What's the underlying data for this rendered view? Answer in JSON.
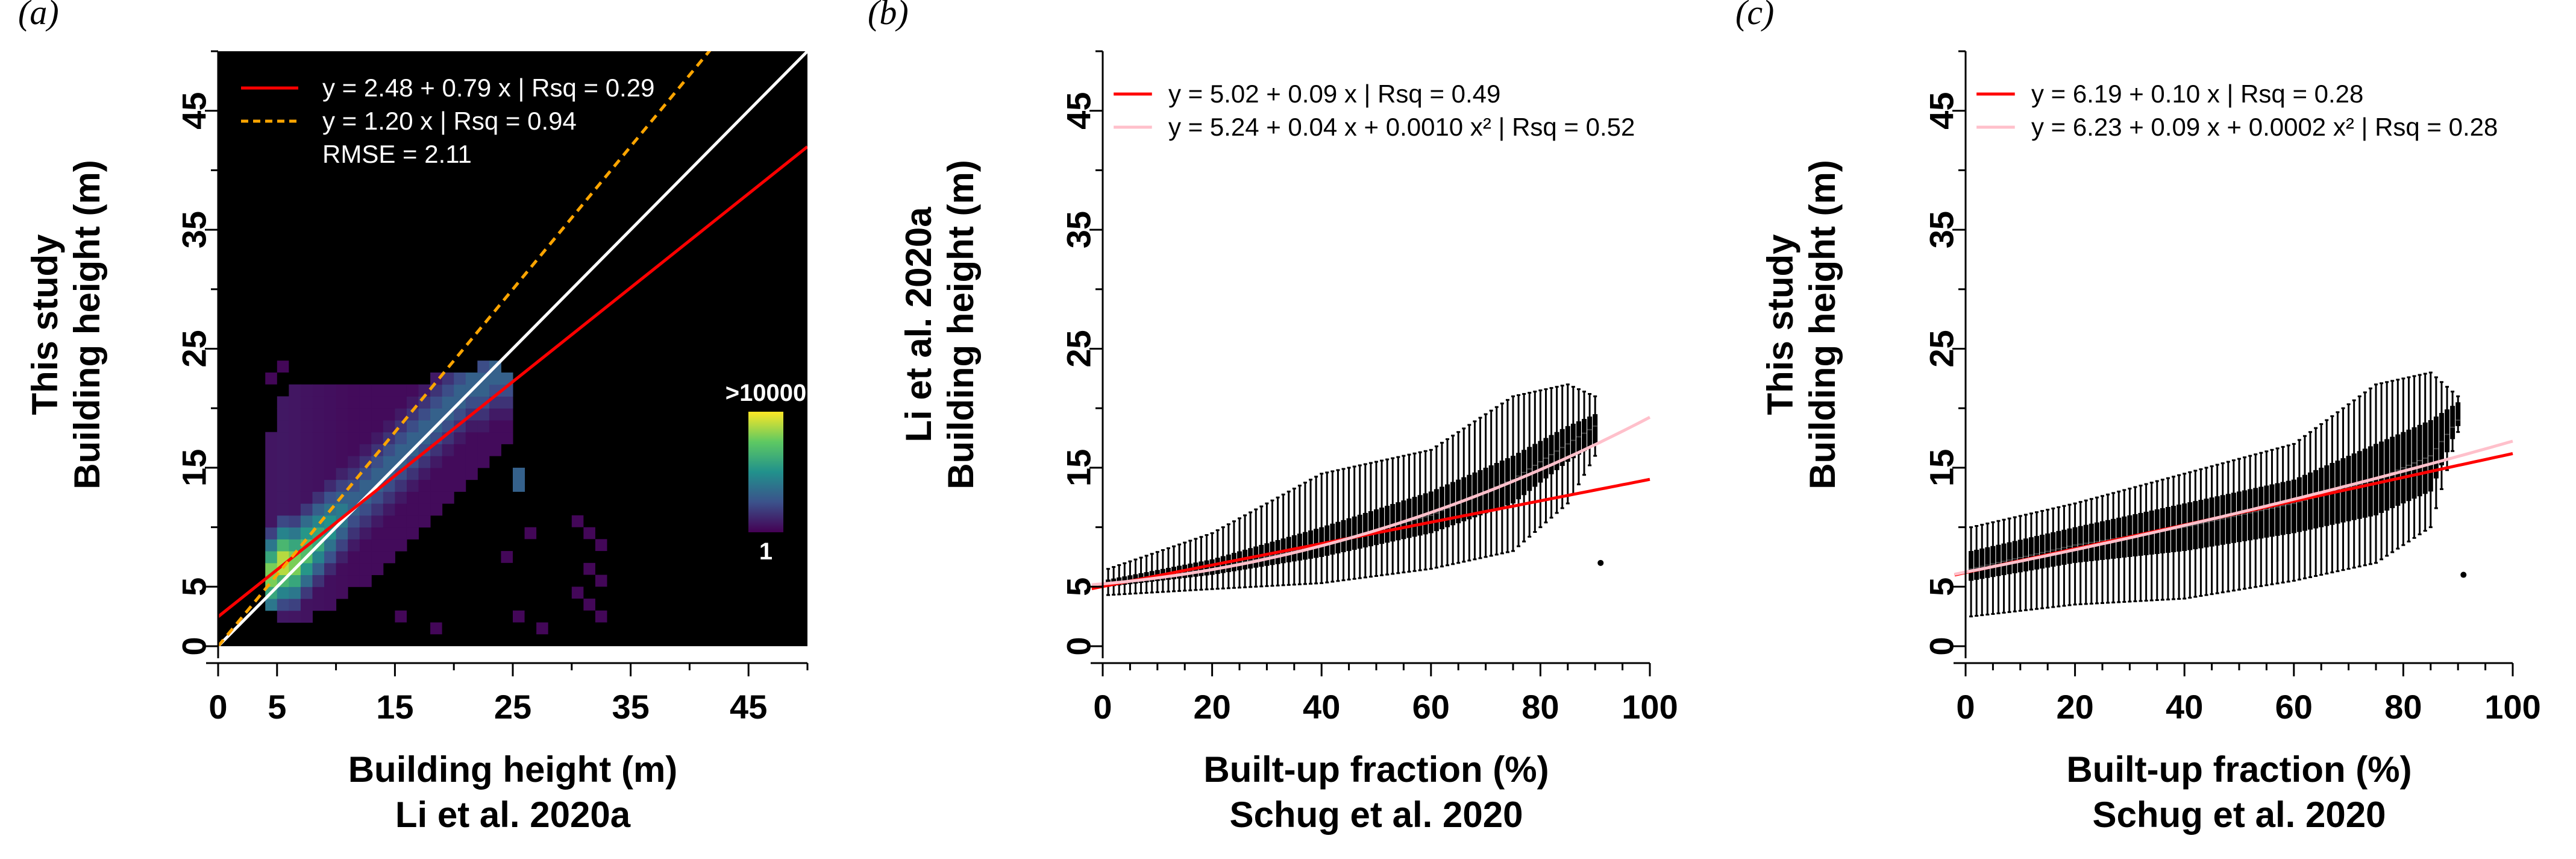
{
  "chart_data": [
    {
      "panel_label": "(a)",
      "type": "heatmap",
      "xlabel_lines": [
        "Building height (m)",
        "Li et al. 2020a"
      ],
      "ylabel_lines": [
        "This study",
        "Building height (m)"
      ],
      "xlim": [
        0,
        50
      ],
      "ylim": [
        0,
        50
      ],
      "xticks": [
        0,
        5,
        15,
        25,
        35,
        45
      ],
      "yticks": [
        0,
        5,
        15,
        25,
        35,
        45
      ],
      "background": "#000000",
      "colorbar": {
        "top_label": ">10000",
        "bottom_label": "1",
        "colormap": "viridis"
      },
      "legend": [
        {
          "text": "y = 2.48 + 0.79 x | Rsq = 0.29",
          "style": "solid",
          "color": "#ff0000"
        },
        {
          "text": "y = 1.20 x | Rsq = 0.94",
          "style": "dashed",
          "color": "#ffa500"
        },
        {
          "text": "RMSE  = 2.11",
          "style": "none",
          "color": "#ffffff"
        }
      ],
      "lines": [
        {
          "kind": "one_to_one",
          "color": "#ffffff",
          "slope": 1.0,
          "intercept": 0
        },
        {
          "kind": "linear_fit",
          "color": "#ff0000",
          "slope": 0.79,
          "intercept": 2.48
        },
        {
          "kind": "through_origin_fit",
          "color": "#ffa500",
          "slope": 1.2,
          "intercept": 0,
          "dashed": true
        }
      ],
      "density_profile": [
        {
          "x": [
            4,
            5
          ],
          "y_min": 3,
          "y_max": 18,
          "peak": 6
        },
        {
          "x": [
            5,
            6
          ],
          "y_min": 2,
          "y_max": 21,
          "peak": 7
        },
        {
          "x": [
            6,
            7
          ],
          "y_min": 2,
          "y_max": 22,
          "peak": 7
        },
        {
          "x": [
            7,
            8
          ],
          "y_min": 2,
          "y_max": 22,
          "peak": 8
        },
        {
          "x": [
            8,
            9
          ],
          "y_min": 3,
          "y_max": 22,
          "peak": 9
        },
        {
          "x": [
            9,
            10
          ],
          "y_min": 3,
          "y_max": 22,
          "peak": 10
        },
        {
          "x": [
            10,
            11
          ],
          "y_min": 4,
          "y_max": 22,
          "peak": 11
        },
        {
          "x": [
            11,
            12
          ],
          "y_min": 5,
          "y_max": 22,
          "peak": 12
        },
        {
          "x": [
            12,
            13
          ],
          "y_min": 5,
          "y_max": 22,
          "peak": 13
        },
        {
          "x": [
            13,
            14
          ],
          "y_min": 6,
          "y_max": 22,
          "peak": 14
        },
        {
          "x": [
            14,
            15
          ],
          "y_min": 7,
          "y_max": 22,
          "peak": 15
        },
        {
          "x": [
            15,
            16
          ],
          "y_min": 8,
          "y_max": 22,
          "peak": 16
        },
        {
          "x": [
            16,
            17
          ],
          "y_min": 9,
          "y_max": 22,
          "peak": 17
        },
        {
          "x": [
            17,
            18
          ],
          "y_min": 10,
          "y_max": 22,
          "peak": 18
        },
        {
          "x": [
            18,
            19
          ],
          "y_min": 11,
          "y_max": 23,
          "peak": 19
        },
        {
          "x": [
            19,
            20
          ],
          "y_min": 12,
          "y_max": 23,
          "peak": 20
        },
        {
          "x": [
            20,
            21
          ],
          "y_min": 13,
          "y_max": 23,
          "peak": 21
        },
        {
          "x": [
            21,
            22
          ],
          "y_min": 14,
          "y_max": 23,
          "peak": 22
        },
        {
          "x": [
            22,
            23
          ],
          "y_min": 15,
          "y_max": 24,
          "peak": 22
        },
        {
          "x": [
            23,
            24
          ],
          "y_min": 16,
          "y_max": 24,
          "peak": 23
        },
        {
          "x": [
            24,
            25
          ],
          "y_min": 17,
          "y_max": 23,
          "peak": 23
        },
        {
          "x": [
            25,
            26
          ],
          "y_min": 13,
          "y_max": 15,
          "peak": 14
        }
      ],
      "outlier_cells": [
        {
          "x": 30,
          "y": 10
        },
        {
          "x": 31,
          "y": 9
        },
        {
          "x": 32,
          "y": 8
        },
        {
          "x": 31,
          "y": 6
        },
        {
          "x": 32,
          "y": 5
        },
        {
          "x": 30,
          "y": 4
        },
        {
          "x": 31,
          "y": 3
        },
        {
          "x": 32,
          "y": 2
        },
        {
          "x": 27,
          "y": 1
        },
        {
          "x": 25,
          "y": 2
        },
        {
          "x": 18,
          "y": 1
        },
        {
          "x": 15,
          "y": 2
        },
        {
          "x": 24,
          "y": 7
        },
        {
          "x": 26,
          "y": 9
        },
        {
          "x": 4,
          "y": 22
        },
        {
          "x": 5,
          "y": 23
        }
      ]
    },
    {
      "panel_label": "(b)",
      "type": "boxplot",
      "xlabel_lines": [
        "Built-up fraction (%)",
        "Schug et al. 2020"
      ],
      "ylabel_lines": [
        "Li et al. 2020a",
        "Building height (m)"
      ],
      "xlim": [
        0,
        100
      ],
      "ylim": [
        0,
        50
      ],
      "xticks": [
        0,
        20,
        40,
        60,
        80,
        100
      ],
      "yticks": [
        0,
        5,
        15,
        25,
        35,
        45
      ],
      "legend": [
        {
          "text": "y = 5.02 + 0.09 x | Rsq = 0.49",
          "color": "#ff0000"
        },
        {
          "text": "y = 5.24 + 0.04 x + 0.0010 x² | Rsq = 0.52",
          "color": "#ffc0cb"
        }
      ],
      "fits": [
        {
          "color": "#ff0000",
          "coef": [
            5.02,
            0.09,
            0
          ]
        },
        {
          "color": "#ffc0cb",
          "coef": [
            5.24,
            0.04,
            0.001
          ]
        }
      ],
      "box_bands": {
        "median": [
          [
            1,
            5.2
          ],
          [
            20,
            6.5
          ],
          [
            40,
            8.5
          ],
          [
            60,
            11
          ],
          [
            75,
            14
          ],
          [
            85,
            17
          ],
          [
            90,
            18.5
          ]
        ],
        "q1": [
          [
            1,
            5.0
          ],
          [
            20,
            6.0
          ],
          [
            40,
            7.5
          ],
          [
            60,
            9.5
          ],
          [
            75,
            12
          ],
          [
            85,
            15.5
          ],
          [
            90,
            17
          ]
        ],
        "q3": [
          [
            1,
            5.6
          ],
          [
            20,
            7.3
          ],
          [
            40,
            10
          ],
          [
            60,
            13
          ],
          [
            75,
            16
          ],
          [
            85,
            18.5
          ],
          [
            90,
            19.5
          ]
        ],
        "whisker_low": [
          [
            1,
            4.3
          ],
          [
            20,
            4.8
          ],
          [
            40,
            5.3
          ],
          [
            60,
            6.5
          ],
          [
            75,
            8
          ],
          [
            85,
            12
          ],
          [
            90,
            16
          ]
        ],
        "whisker_high": [
          [
            1,
            6.5
          ],
          [
            20,
            9.5
          ],
          [
            40,
            14.5
          ],
          [
            60,
            16.5
          ],
          [
            75,
            21
          ],
          [
            85,
            22
          ],
          [
            90,
            21
          ]
        ]
      },
      "outliers": [
        {
          "x": 91,
          "y": 7
        }
      ]
    },
    {
      "panel_label": "(c)",
      "type": "boxplot",
      "xlabel_lines": [
        "Built-up fraction (%)",
        "Schug et al. 2020"
      ],
      "ylabel_lines": [
        "This study",
        "Building height (m)"
      ],
      "xlim": [
        0,
        100
      ],
      "ylim": [
        0,
        50
      ],
      "xticks": [
        0,
        20,
        40,
        60,
        80,
        100
      ],
      "yticks": [
        0,
        5,
        15,
        25,
        35,
        45
      ],
      "legend": [
        {
          "text": "y = 6.19 + 0.10 x | Rsq = 0.28",
          "color": "#ff0000"
        },
        {
          "text": "y = 6.23 + 0.09 x + 0.0002 x² | Rsq = 0.28",
          "color": "#ffc0cb"
        }
      ],
      "fits": [
        {
          "color": "#ff0000",
          "coef": [
            6.19,
            0.1,
            0
          ]
        },
        {
          "color": "#ffc0cb",
          "coef": [
            6.23,
            0.09,
            0.0002
          ]
        }
      ],
      "box_bands": {
        "median": [
          [
            1,
            6.5
          ],
          [
            20,
            8.5
          ],
          [
            40,
            10
          ],
          [
            60,
            12
          ],
          [
            75,
            14
          ],
          [
            85,
            16
          ],
          [
            90,
            19
          ]
        ],
        "q1": [
          [
            1,
            5.5
          ],
          [
            20,
            7.0
          ],
          [
            40,
            8.0
          ],
          [
            60,
            9.5
          ],
          [
            75,
            11
          ],
          [
            85,
            13
          ],
          [
            90,
            18.5
          ]
        ],
        "q3": [
          [
            1,
            8.0
          ],
          [
            20,
            10.0
          ],
          [
            40,
            12.0
          ],
          [
            60,
            14.0
          ],
          [
            75,
            17
          ],
          [
            85,
            19
          ],
          [
            90,
            20.5
          ]
        ],
        "whisker_low": [
          [
            1,
            2.5
          ],
          [
            20,
            3.5
          ],
          [
            40,
            4.0
          ],
          [
            60,
            5.5
          ],
          [
            75,
            7
          ],
          [
            85,
            10
          ],
          [
            90,
            18
          ]
        ],
        "whisker_high": [
          [
            1,
            10
          ],
          [
            20,
            12
          ],
          [
            40,
            14.5
          ],
          [
            60,
            17
          ],
          [
            75,
            22
          ],
          [
            85,
            23
          ],
          [
            90,
            21
          ]
        ]
      },
      "outliers": [
        {
          "x": 91,
          "y": 6
        }
      ]
    }
  ]
}
